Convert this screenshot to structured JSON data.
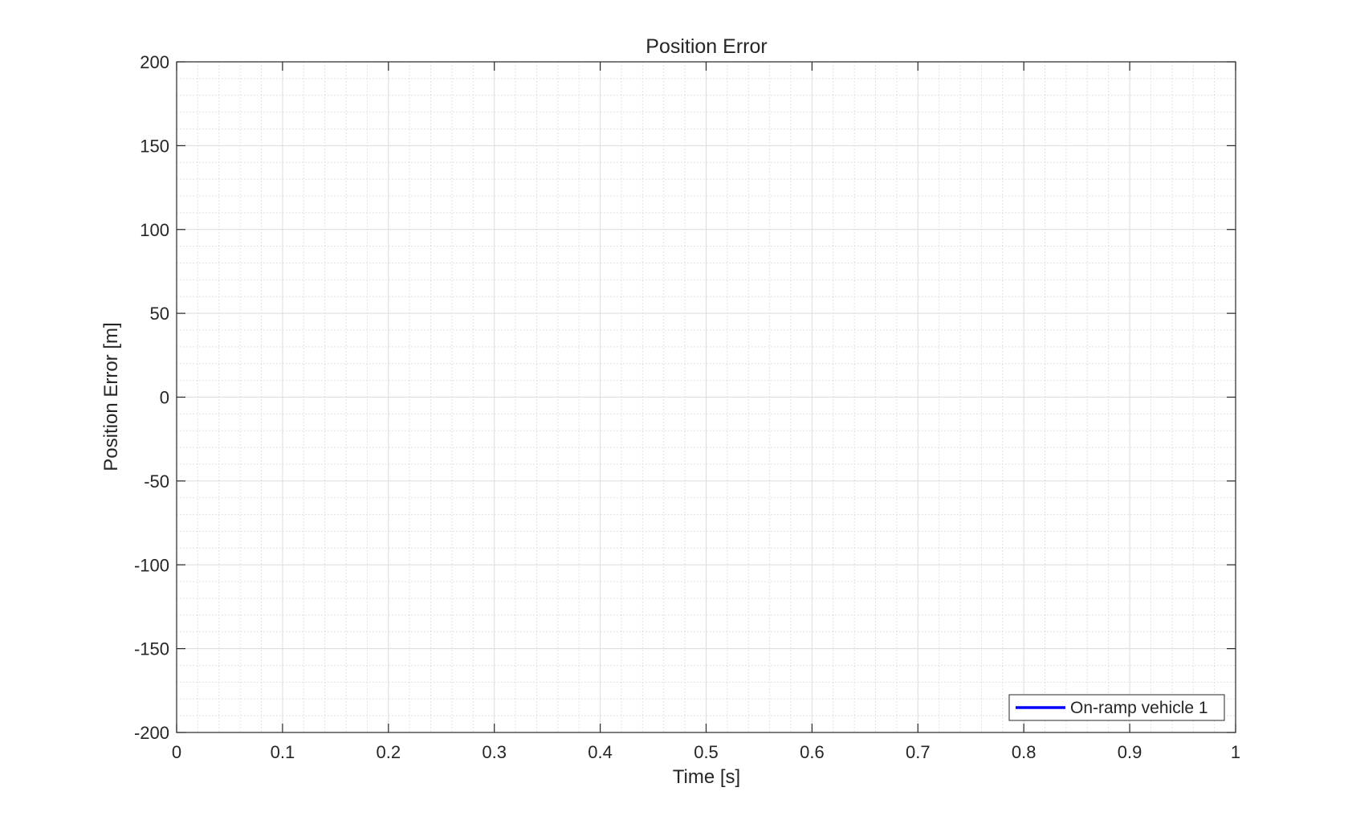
{
  "chart_data": {
    "type": "line",
    "title": "Position Error",
    "xlabel": "Time [s]",
    "ylabel": "Position Error [m]",
    "xlim": [
      0,
      1
    ],
    "ylim": [
      -200,
      200
    ],
    "x_ticks": [
      0,
      0.1,
      0.2,
      0.3,
      0.4,
      0.5,
      0.6,
      0.7,
      0.8,
      0.9,
      1
    ],
    "x_tick_labels": [
      "0",
      "0.1",
      "0.2",
      "0.3",
      "0.4",
      "0.5",
      "0.6",
      "0.7",
      "0.8",
      "0.9",
      "1"
    ],
    "y_ticks": [
      200,
      150,
      100,
      50,
      0,
      -50,
      -100,
      -150,
      -200
    ],
    "y_tick_labels": [
      "200",
      "150",
      "100",
      "50",
      "0",
      "-50",
      "-100",
      "-150",
      "-200"
    ],
    "grid": true,
    "minor_grid": true,
    "legend_position": "bottom-right",
    "series": [
      {
        "name": "On-ramp vehicle 1",
        "color": "#0000ff",
        "x": [],
        "y": []
      }
    ]
  }
}
